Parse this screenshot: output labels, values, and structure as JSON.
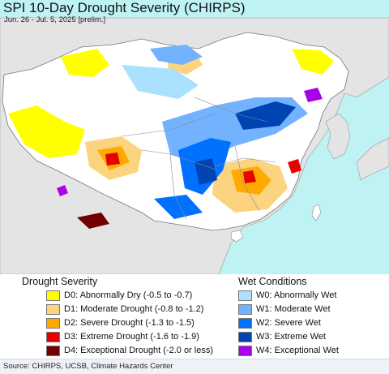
{
  "header": {
    "title": "SPI 10-Day Drought Severity (CHIRPS)",
    "subtitle": "Jun. 26 - Jul. 5, 2025 [prelim.]"
  },
  "colors": {
    "ocean": "#bff3f3",
    "land_neutral": "#ffffff",
    "outside_land": "#e4e4e4",
    "border": "#8a8a8a"
  },
  "legend": {
    "drought_title": "Drought Severity",
    "wet_title": "Wet Conditions",
    "drought": [
      {
        "code": "D0",
        "label": "D0: Abnormally Dry (-0.5 to -0.7)",
        "color": "#ffff00"
      },
      {
        "code": "D1",
        "label": "D1: Moderate Drought (-0.8 to -1.2)",
        "color": "#fcd37f"
      },
      {
        "code": "D2",
        "label": "D2: Severe Drought (-1.3 to -1.5)",
        "color": "#ffaa00"
      },
      {
        "code": "D3",
        "label": "D3: Extreme Drought (-1.6 to -1.9)",
        "color": "#e60000"
      },
      {
        "code": "D4",
        "label": "D4: Exceptional Drought (-2.0 or less)",
        "color": "#730000"
      }
    ],
    "wet": [
      {
        "code": "W0",
        "label": "W0: Abnormally Wet",
        "color": "#aae1ff"
      },
      {
        "code": "W1",
        "label": "W1: Moderate Wet",
        "color": "#73b2ff"
      },
      {
        "code": "W2",
        "label": "W2: Severe Wet",
        "color": "#0070ff"
      },
      {
        "code": "W3",
        "label": "W3: Extreme Wet",
        "color": "#0044b3"
      },
      {
        "code": "W4",
        "label": "W4: Exceptional Wet",
        "color": "#a900e6"
      }
    ]
  },
  "footer": {
    "source": "Source: CHIRPS, UCSB, Climate Hazards Center"
  }
}
